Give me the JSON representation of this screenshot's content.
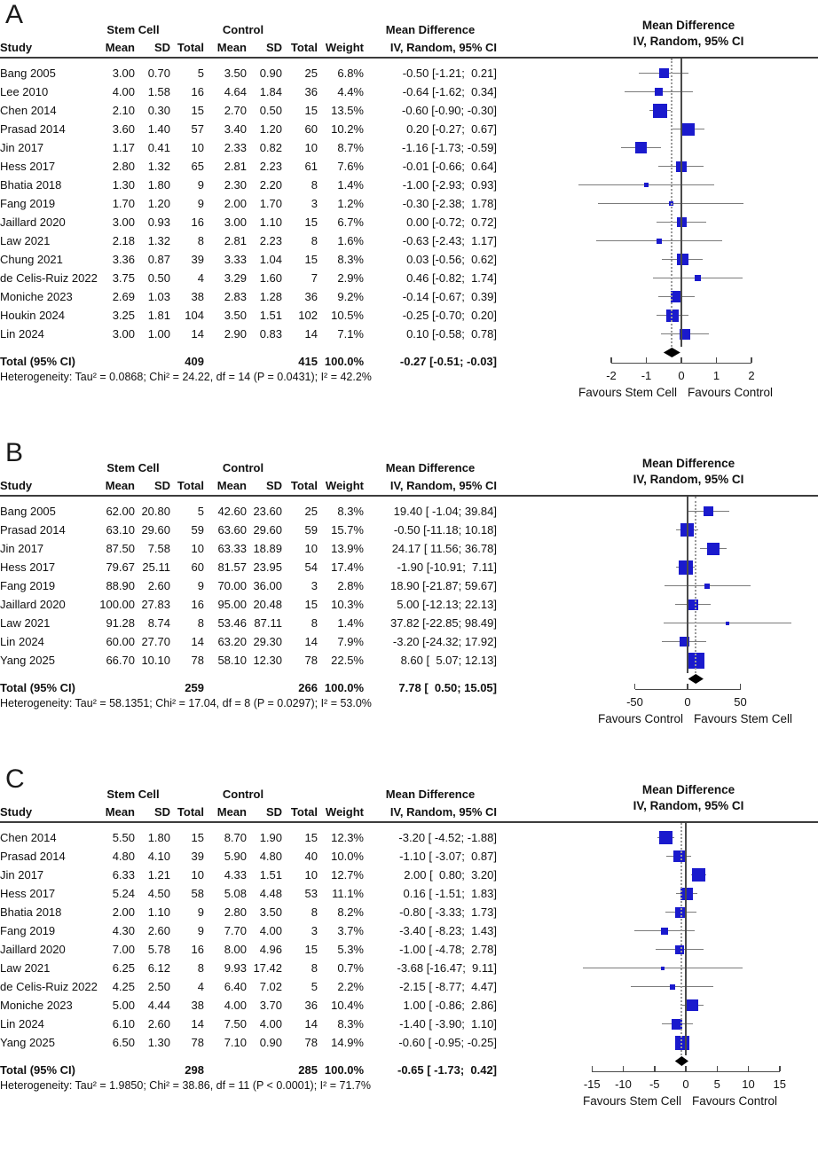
{
  "colors": {
    "square": "#1a1acd",
    "diamond": "#000000",
    "whisker": "#7b7b7b",
    "axis": "#4a4a4a",
    "text": "#111111"
  },
  "chart_data": {
    "type": "forest",
    "panels": [
      {
        "label": "A",
        "group_headers": {
          "stem_cell": "Stem Cell",
          "control": "Control",
          "mean_difference": "Mean Difference"
        },
        "column_headers": {
          "study": "Study",
          "mean": "Mean",
          "sd": "SD",
          "total": "Total",
          "mean2": "Mean",
          "sd2": "SD",
          "total2": "Total",
          "weight": "Weight",
          "ci": "IV, Random, 95% CI"
        },
        "plot_header_line1": "Mean Difference",
        "plot_header_line2": "IV, Random, 95% CI",
        "studies": [
          {
            "name": "Bang 2005",
            "mean1": "3.00",
            "sd1": "0.70",
            "n1": "5",
            "mean2": "3.50",
            "sd2": "0.90",
            "n2": "25",
            "weight": "6.8%",
            "weight_value": 6.8,
            "ci_text": "-0.50 [-1.21;  0.21]",
            "md": -0.5,
            "lo": -1.21,
            "hi": 0.21
          },
          {
            "name": "Lee 2010",
            "mean1": "4.00",
            "sd1": "1.58",
            "n1": "16",
            "mean2": "4.64",
            "sd2": "1.84",
            "n2": "36",
            "weight": "4.4%",
            "weight_value": 4.4,
            "ci_text": "-0.64 [-1.62;  0.34]",
            "md": -0.64,
            "lo": -1.62,
            "hi": 0.34
          },
          {
            "name": "Chen 2014",
            "mean1": "2.10",
            "sd1": "0.30",
            "n1": "15",
            "mean2": "2.70",
            "sd2": "0.50",
            "n2": "15",
            "weight": "13.5%",
            "weight_value": 13.5,
            "ci_text": "-0.60 [-0.90; -0.30]",
            "md": -0.6,
            "lo": -0.9,
            "hi": -0.3
          },
          {
            "name": "Prasad 2014",
            "mean1": "3.60",
            "sd1": "1.40",
            "n1": "57",
            "mean2": "3.40",
            "sd2": "1.20",
            "n2": "60",
            "weight": "10.2%",
            "weight_value": 10.2,
            "ci_text": " 0.20 [-0.27;  0.67]",
            "md": 0.2,
            "lo": -0.27,
            "hi": 0.67
          },
          {
            "name": "Jin 2017",
            "mean1": "1.17",
            "sd1": "0.41",
            "n1": "10",
            "mean2": "2.33",
            "sd2": "0.82",
            "n2": "10",
            "weight": "8.7%",
            "weight_value": 8.7,
            "ci_text": "-1.16 [-1.73; -0.59]",
            "md": -1.16,
            "lo": -1.73,
            "hi": -0.59
          },
          {
            "name": "Hess 2017",
            "mean1": "2.80",
            "sd1": "1.32",
            "n1": "65",
            "mean2": "2.81",
            "sd2": "2.23",
            "n2": "61",
            "weight": "7.6%",
            "weight_value": 7.6,
            "ci_text": "-0.01 [-0.66;  0.64]",
            "md": -0.01,
            "lo": -0.66,
            "hi": 0.64
          },
          {
            "name": "Bhatia 2018",
            "mean1": "1.30",
            "sd1": "1.80",
            "n1": "9",
            "mean2": "2.30",
            "sd2": "2.20",
            "n2": "8",
            "weight": "1.4%",
            "weight_value": 1.4,
            "ci_text": "-1.00 [-2.93;  0.93]",
            "md": -1.0,
            "lo": -2.93,
            "hi": 0.93
          },
          {
            "name": "Fang 2019",
            "mean1": "1.70",
            "sd1": "1.20",
            "n1": "9",
            "mean2": "2.00",
            "sd2": "1.70",
            "n2": "3",
            "weight": "1.2%",
            "weight_value": 1.2,
            "ci_text": "-0.30 [-2.38;  1.78]",
            "md": -0.3,
            "lo": -2.38,
            "hi": 1.78
          },
          {
            "name": "Jaillard 2020",
            "mean1": "3.00",
            "sd1": "0.93",
            "n1": "16",
            "mean2": "3.00",
            "sd2": "1.10",
            "n2": "15",
            "weight": "6.7%",
            "weight_value": 6.7,
            "ci_text": " 0.00 [-0.72;  0.72]",
            "md": 0.0,
            "lo": -0.72,
            "hi": 0.72
          },
          {
            "name": "Law 2021",
            "mean1": "2.18",
            "sd1": "1.32",
            "n1": "8",
            "mean2": "2.81",
            "sd2": "2.23",
            "n2": "8",
            "weight": "1.6%",
            "weight_value": 1.6,
            "ci_text": "-0.63 [-2.43;  1.17]",
            "md": -0.63,
            "lo": -2.43,
            "hi": 1.17
          },
          {
            "name": "Chung 2021",
            "mean1": "3.36",
            "sd1": "0.87",
            "n1": "39",
            "mean2": "3.33",
            "sd2": "1.04",
            "n2": "15",
            "weight": "8.3%",
            "weight_value": 8.3,
            "ci_text": " 0.03 [-0.56;  0.62]",
            "md": 0.03,
            "lo": -0.56,
            "hi": 0.62
          },
          {
            "name": "de Celis-Ruiz 2022",
            "mean1": "3.75",
            "sd1": "0.50",
            "n1": "4",
            "mean2": "3.29",
            "sd2": "1.60",
            "n2": "7",
            "weight": "2.9%",
            "weight_value": 2.9,
            "ci_text": " 0.46 [-0.82;  1.74]",
            "md": 0.46,
            "lo": -0.82,
            "hi": 1.74
          },
          {
            "name": "Moniche 2023",
            "mean1": "2.69",
            "sd1": "1.03",
            "n1": "38",
            "mean2": "2.83",
            "sd2": "1.28",
            "n2": "36",
            "weight": "9.2%",
            "weight_value": 9.2,
            "ci_text": "-0.14 [-0.67;  0.39]",
            "md": -0.14,
            "lo": -0.67,
            "hi": 0.39
          },
          {
            "name": "Houkin 2024",
            "mean1": "3.25",
            "sd1": "1.81",
            "n1": "104",
            "mean2": "3.50",
            "sd2": "1.51",
            "n2": "102",
            "weight": "10.5%",
            "weight_value": 10.5,
            "ci_text": "-0.25 [-0.70;  0.20]",
            "md": -0.25,
            "lo": -0.7,
            "hi": 0.2
          },
          {
            "name": "Lin 2024",
            "mean1": "3.00",
            "sd1": "1.00",
            "n1": "14",
            "mean2": "2.90",
            "sd2": "0.83",
            "n2": "14",
            "weight": "7.1%",
            "weight_value": 7.1,
            "ci_text": " 0.10 [-0.58;  0.78]",
            "md": 0.1,
            "lo": -0.58,
            "hi": 0.78
          }
        ],
        "total": {
          "label": "Total (95% CI)",
          "n1": "409",
          "n2": "415",
          "weight": "100.0%",
          "ci_text": "-0.27 [-0.51; -0.03]",
          "md": -0.27,
          "lo": -0.51,
          "hi": -0.03
        },
        "heterogeneity": "Heterogeneity: Tau² = 0.0868; Chi² = 24.22, df = 14 (P = 0.0431); I² = 42.2%",
        "axis": {
          "ticks": [
            -2,
            -1,
            0,
            1,
            2
          ],
          "favours_left": "Favours Stem Cell",
          "favours_right": "Favours Control"
        }
      },
      {
        "label": "B",
        "group_headers": {
          "stem_cell": "Stem Cell",
          "control": "Control",
          "mean_difference": "Mean Difference"
        },
        "column_headers": {
          "study": "Study",
          "mean": "Mean",
          "sd": "SD",
          "total": "Total",
          "mean2": "Mean",
          "sd2": "SD",
          "total2": "Total",
          "weight": "Weight",
          "ci": "IV, Random, 95% CI"
        },
        "plot_header_line1": "Mean Difference",
        "plot_header_line2": "IV, Random, 95% CI",
        "studies": [
          {
            "name": "Bang 2005",
            "mean1": "62.00",
            "sd1": "20.80",
            "n1": "5",
            "mean2": "42.60",
            "sd2": "23.60",
            "n2": "25",
            "weight": "8.3%",
            "weight_value": 8.3,
            "ci_text": "19.40 [ -1.04; 39.84]",
            "md": 19.4,
            "lo": -1.04,
            "hi": 39.84
          },
          {
            "name": "Prasad 2014",
            "mean1": "63.10",
            "sd1": "29.60",
            "n1": "59",
            "mean2": "63.60",
            "sd2": "29.60",
            "n2": "59",
            "weight": "15.7%",
            "weight_value": 15.7,
            "ci_text": "-0.50 [-11.18; 10.18]",
            "md": -0.5,
            "lo": -11.18,
            "hi": 10.18
          },
          {
            "name": "Jin 2017",
            "mean1": "87.50",
            "sd1": "7.58",
            "n1": "10",
            "mean2": "63.33",
            "sd2": "18.89",
            "n2": "10",
            "weight": "13.9%",
            "weight_value": 13.9,
            "ci_text": "24.17 [ 11.56; 36.78]",
            "md": 24.17,
            "lo": 11.56,
            "hi": 36.78
          },
          {
            "name": "Hess 2017",
            "mean1": "79.67",
            "sd1": "25.11",
            "n1": "60",
            "mean2": "81.57",
            "sd2": "23.95",
            "n2": "54",
            "weight": "17.4%",
            "weight_value": 17.4,
            "ci_text": "-1.90 [-10.91;  7.11]",
            "md": -1.9,
            "lo": -10.91,
            "hi": 7.11
          },
          {
            "name": "Fang 2019",
            "mean1": "88.90",
            "sd1": "2.60",
            "n1": "9",
            "mean2": "70.00",
            "sd2": "36.00",
            "n2": "3",
            "weight": "2.8%",
            "weight_value": 2.8,
            "ci_text": "18.90 [-21.87; 59.67]",
            "md": 18.9,
            "lo": -21.87,
            "hi": 59.67
          },
          {
            "name": "Jaillard 2020",
            "mean1": "100.00",
            "sd1": "27.83",
            "n1": "16",
            "mean2": "95.00",
            "sd2": "20.48",
            "n2": "15",
            "weight": "10.3%",
            "weight_value": 10.3,
            "ci_text": " 5.00 [-12.13; 22.13]",
            "md": 5.0,
            "lo": -12.13,
            "hi": 22.13
          },
          {
            "name": "Law 2021",
            "mean1": "91.28",
            "sd1": "8.74",
            "n1": "8",
            "mean2": "53.46",
            "sd2": "87.11",
            "n2": "8",
            "weight": "1.4%",
            "weight_value": 1.4,
            "ci_text": "37.82 [-22.85; 98.49]",
            "md": 37.82,
            "lo": -22.85,
            "hi": 98.49
          },
          {
            "name": "Lin 2024",
            "mean1": "60.00",
            "sd1": "27.70",
            "n1": "14",
            "mean2": "63.20",
            "sd2": "29.30",
            "n2": "14",
            "weight": "7.9%",
            "weight_value": 7.9,
            "ci_text": "-3.20 [-24.32; 17.92]",
            "md": -3.2,
            "lo": -24.32,
            "hi": 17.92
          },
          {
            "name": "Yang 2025",
            "mean1": "66.70",
            "sd1": "10.10",
            "n1": "78",
            "mean2": "58.10",
            "sd2": "12.30",
            "n2": "78",
            "weight": "22.5%",
            "weight_value": 22.5,
            "ci_text": " 8.60 [  5.07; 12.13]",
            "md": 8.6,
            "lo": 5.07,
            "hi": 12.13
          }
        ],
        "total": {
          "label": "Total (95% CI)",
          "n1": "259",
          "n2": "266",
          "weight": "100.0%",
          "ci_text": " 7.78 [  0.50; 15.05]",
          "md": 7.78,
          "lo": 0.5,
          "hi": 15.05
        },
        "heterogeneity": "Heterogeneity: Tau² = 58.1351; Chi² = 17.04, df = 8 (P = 0.0297); I² = 53.0%",
        "axis": {
          "ticks": [
            -50,
            0,
            50
          ],
          "favours_left": "Favours Control",
          "favours_right": "Favours Stem Cell"
        }
      },
      {
        "label": "C",
        "group_headers": {
          "stem_cell": "Stem Cell",
          "control": "Control",
          "mean_difference": "Mean Difference"
        },
        "column_headers": {
          "study": "Study",
          "mean": "Mean",
          "sd": "SD",
          "total": "Total",
          "mean2": "Mean",
          "sd2": "SD",
          "total2": "Total",
          "weight": "Weight",
          "ci": "IV, Random, 95% CI"
        },
        "plot_header_line1": "Mean Difference",
        "plot_header_line2": "IV, Random, 95% CI",
        "studies": [
          {
            "name": "Chen 2014",
            "mean1": "5.50",
            "sd1": "1.80",
            "n1": "15",
            "mean2": "8.70",
            "sd2": "1.90",
            "n2": "15",
            "weight": "12.3%",
            "weight_value": 12.3,
            "ci_text": "-3.20 [ -4.52; -1.88]",
            "md": -3.2,
            "lo": -4.52,
            "hi": -1.88
          },
          {
            "name": "Prasad 2014",
            "mean1": "4.80",
            "sd1": "4.10",
            "n1": "39",
            "mean2": "5.90",
            "sd2": "4.80",
            "n2": "40",
            "weight": "10.0%",
            "weight_value": 10.0,
            "ci_text": "-1.10 [ -3.07;  0.87]",
            "md": -1.1,
            "lo": -3.07,
            "hi": 0.87
          },
          {
            "name": "Jin 2017",
            "mean1": "6.33",
            "sd1": "1.21",
            "n1": "10",
            "mean2": "4.33",
            "sd2": "1.51",
            "n2": "10",
            "weight": "12.7%",
            "weight_value": 12.7,
            "ci_text": " 2.00 [  0.80;  3.20]",
            "md": 2.0,
            "lo": 0.8,
            "hi": 3.2
          },
          {
            "name": "Hess 2017",
            "mean1": "5.24",
            "sd1": "4.50",
            "n1": "58",
            "mean2": "5.08",
            "sd2": "4.48",
            "n2": "53",
            "weight": "11.1%",
            "weight_value": 11.1,
            "ci_text": " 0.16 [ -1.51;  1.83]",
            "md": 0.16,
            "lo": -1.51,
            "hi": 1.83
          },
          {
            "name": "Bhatia 2018",
            "mean1": "2.00",
            "sd1": "1.10",
            "n1": "9",
            "mean2": "2.80",
            "sd2": "3.50",
            "n2": "8",
            "weight": "8.2%",
            "weight_value": 8.2,
            "ci_text": "-0.80 [ -3.33;  1.73]",
            "md": -0.8,
            "lo": -3.33,
            "hi": 1.73
          },
          {
            "name": "Fang 2019",
            "mean1": "4.30",
            "sd1": "2.60",
            "n1": "9",
            "mean2": "7.70",
            "sd2": "4.00",
            "n2": "3",
            "weight": "3.7%",
            "weight_value": 3.7,
            "ci_text": "-3.40 [ -8.23;  1.43]",
            "md": -3.4,
            "lo": -8.23,
            "hi": 1.43
          },
          {
            "name": "Jaillard 2020",
            "mean1": "7.00",
            "sd1": "5.78",
            "n1": "16",
            "mean2": "8.00",
            "sd2": "4.96",
            "n2": "15",
            "weight": "5.3%",
            "weight_value": 5.3,
            "ci_text": "-1.00 [ -4.78;  2.78]",
            "md": -1.0,
            "lo": -4.78,
            "hi": 2.78
          },
          {
            "name": "Law 2021",
            "mean1": "6.25",
            "sd1": "6.12",
            "n1": "8",
            "mean2": "9.93",
            "sd2": "17.42",
            "n2": "8",
            "weight": "0.7%",
            "weight_value": 0.7,
            "ci_text": "-3.68 [-16.47;  9.11]",
            "md": -3.68,
            "lo": -16.47,
            "hi": 9.11
          },
          {
            "name": "de Celis-Ruiz 2022",
            "mean1": "4.25",
            "sd1": "2.50",
            "n1": "4",
            "mean2": "6.40",
            "sd2": "7.02",
            "n2": "5",
            "weight": "2.2%",
            "weight_value": 2.2,
            "ci_text": "-2.15 [ -8.77;  4.47]",
            "md": -2.15,
            "lo": -8.77,
            "hi": 4.47
          },
          {
            "name": "Moniche 2023",
            "mean1": "5.00",
            "sd1": "4.44",
            "n1": "38",
            "mean2": "4.00",
            "sd2": "3.70",
            "n2": "36",
            "weight": "10.4%",
            "weight_value": 10.4,
            "ci_text": " 1.00 [ -0.86;  2.86]",
            "md": 1.0,
            "lo": -0.86,
            "hi": 2.86
          },
          {
            "name": "Lin 2024",
            "mean1": "6.10",
            "sd1": "2.60",
            "n1": "14",
            "mean2": "7.50",
            "sd2": "4.00",
            "n2": "14",
            "weight": "8.3%",
            "weight_value": 8.3,
            "ci_text": "-1.40 [ -3.90;  1.10]",
            "md": -1.4,
            "lo": -3.9,
            "hi": 1.1
          },
          {
            "name": "Yang 2025",
            "mean1": "6.50",
            "sd1": "1.30",
            "n1": "78",
            "mean2": "7.10",
            "sd2": "0.90",
            "n2": "78",
            "weight": "14.9%",
            "weight_value": 14.9,
            "ci_text": "-0.60 [ -0.95; -0.25]",
            "md": -0.6,
            "lo": -0.95,
            "hi": -0.25
          }
        ],
        "total": {
          "label": "Total (95% CI)",
          "n1": "298",
          "n2": "285",
          "weight": "100.0%",
          "ci_text": "-0.65 [ -1.73;  0.42]",
          "md": -0.65,
          "lo": -1.73,
          "hi": 0.42
        },
        "heterogeneity": "Heterogeneity: Tau² = 1.9850; Chi² = 38.86, df = 11 (P < 0.0001); I² = 71.7%",
        "axis": {
          "ticks": [
            -15,
            -10,
            -5,
            0,
            5,
            10,
            15
          ],
          "favours_left": "Favours Stem Cell",
          "favours_right": "Favours Control"
        }
      }
    ]
  }
}
